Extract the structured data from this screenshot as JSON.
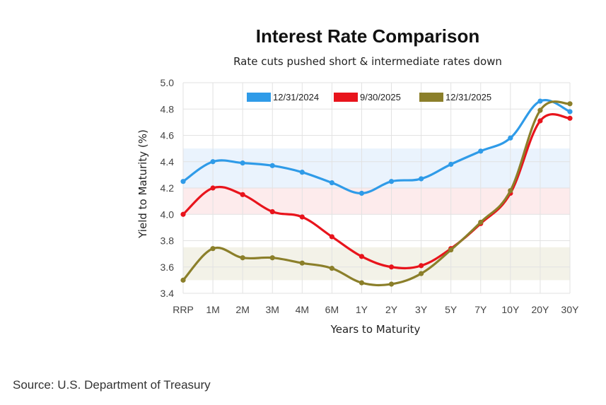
{
  "source_note": "Source: U.S. Department of Treasury",
  "chart_data": {
    "type": "line",
    "title": "Interest Rate Comparison",
    "subtitle": "Rate cuts pushed short & intermediate rates down",
    "xlabel": "Years to Maturity",
    "ylabel": "Yield to Maturity (%)",
    "ylim": [
      3.4,
      5.0
    ],
    "yticks": [
      3.4,
      3.6,
      3.8,
      4.0,
      4.2,
      4.4,
      4.6,
      4.8,
      5.0
    ],
    "grid": true,
    "legend_position": "top",
    "categories": [
      "RRP",
      "1M",
      "2M",
      "3M",
      "4M",
      "6M",
      "1Y",
      "2Y",
      "3Y",
      "5Y",
      "7Y",
      "10Y",
      "20Y",
      "30Y"
    ],
    "series": [
      {
        "name": "12/31/2024",
        "color": "#2f9be8",
        "values": [
          4.25,
          4.4,
          4.39,
          4.37,
          4.32,
          4.24,
          4.16,
          4.25,
          4.27,
          4.38,
          4.48,
          4.58,
          4.86,
          4.78
        ]
      },
      {
        "name": "9/30/2025",
        "color": "#e8141c",
        "values": [
          4.0,
          4.2,
          4.15,
          4.02,
          3.98,
          3.83,
          3.68,
          3.6,
          3.61,
          3.74,
          3.93,
          4.16,
          4.71,
          4.73
        ]
      },
      {
        "name": "12/31/2025",
        "color": "#8b7f2a",
        "values": [
          3.5,
          3.74,
          3.67,
          3.67,
          3.63,
          3.59,
          3.48,
          3.47,
          3.55,
          3.73,
          3.94,
          4.18,
          4.79,
          4.84
        ]
      }
    ],
    "bands": [
      {
        "series": "12/31/2024",
        "from": 4.2,
        "to": 4.5,
        "color": "#eaf3fd"
      },
      {
        "series": "9/30/2025",
        "from": 4.0,
        "to": 4.2,
        "color": "#fdebec"
      },
      {
        "series": "12/31/2025",
        "from": 3.5,
        "to": 3.75,
        "color": "#f3f2e8"
      }
    ]
  }
}
